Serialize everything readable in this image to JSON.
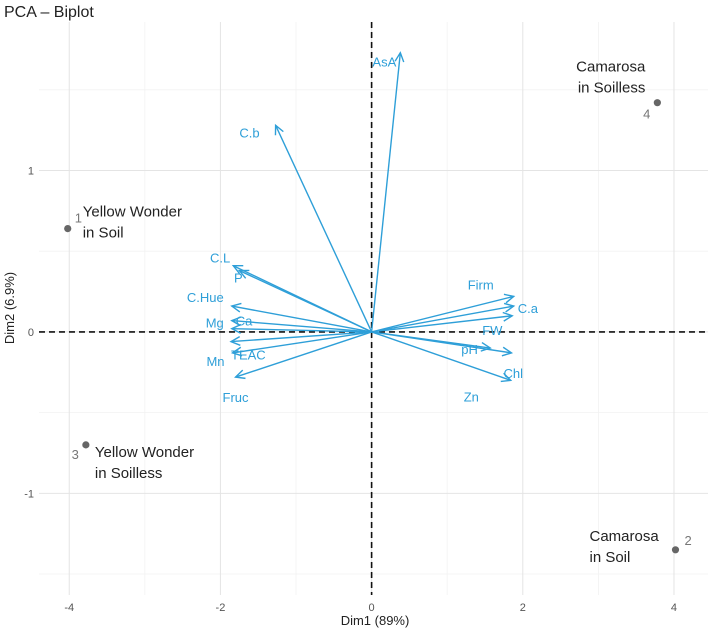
{
  "chart_data": {
    "type": "biplot",
    "title": "PCA – Biplot",
    "xlabel": "Dim1 (89%)",
    "ylabel": "Dim2 (6.9%)",
    "xlim": [
      -4.4,
      4.45
    ],
    "ylim": [
      -1.63,
      1.92
    ],
    "x_ticks": [
      -4,
      -2,
      0,
      2,
      4
    ],
    "x_tick_labels": [
      "-4",
      "-2",
      "0",
      "2",
      "4"
    ],
    "y_ticks": [
      -1,
      0,
      1
    ],
    "y_tick_labels": [
      "-1",
      "0",
      "1"
    ],
    "grid": true,
    "reference_lines": {
      "x": 0,
      "y": 0,
      "style": "dashed"
    },
    "colors": {
      "arrow": "#2e9fd8",
      "point": "#666666",
      "grid_major": "#e4e4e4",
      "grid_minor": "#f2f2f2"
    },
    "individuals": [
      {
        "id": "1",
        "x": -4.02,
        "y": 0.64,
        "label_lines": [
          "Yellow Wonder",
          "in Soil"
        ]
      },
      {
        "id": "2",
        "x": 4.02,
        "y": -1.35,
        "label_lines": [
          "Camarosa",
          "in Soil"
        ]
      },
      {
        "id": "3",
        "x": -3.78,
        "y": -0.7,
        "label_lines": [
          "Yellow Wonder",
          "in Soilless"
        ]
      },
      {
        "id": "4",
        "x": 3.78,
        "y": 1.42,
        "label_lines": [
          "Camarosa",
          "in Soilless"
        ]
      }
    ],
    "variables": [
      {
        "name": "AsA",
        "x": 0.38,
        "y": 1.73
      },
      {
        "name": "C.b",
        "x": -1.27,
        "y": 1.28
      },
      {
        "name": "C.L",
        "x": -1.83,
        "y": 0.41
      },
      {
        "name": "P",
        "x": -1.75,
        "y": 0.38
      },
      {
        "name": "C.Hue",
        "x": -1.85,
        "y": 0.16
      },
      {
        "name": "Mg",
        "x": -1.85,
        "y": 0.07
      },
      {
        "name": "Ca",
        "x": -1.85,
        "y": 0.02
      },
      {
        "name": "TEAC",
        "x": -1.86,
        "y": -0.06
      },
      {
        "name": "Mn",
        "x": -1.84,
        "y": -0.13
      },
      {
        "name": "Fruc",
        "x": -1.8,
        "y": -0.28
      },
      {
        "name": "Firm",
        "x": 1.88,
        "y": 0.22
      },
      {
        "name": "C.a",
        "x": 1.88,
        "y": 0.16
      },
      {
        "name": "FW",
        "x": 1.86,
        "y": 0.1
      },
      {
        "name": "pH",
        "x": 1.57,
        "y": -0.1
      },
      {
        "name": "Chl",
        "x": 1.85,
        "y": -0.13
      },
      {
        "name": "Zn",
        "x": 1.84,
        "y": -0.3
      }
    ]
  }
}
